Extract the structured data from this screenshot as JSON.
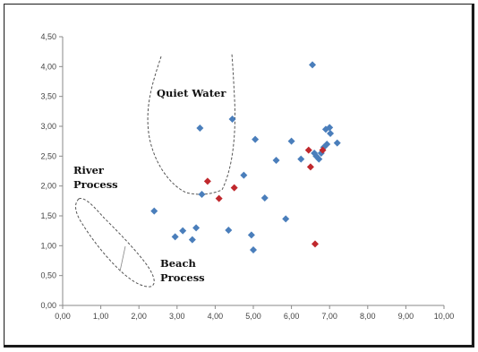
{
  "chart_data": {
    "type": "scatter",
    "title": "",
    "xlabel": "",
    "ylabel": "",
    "xlim": [
      0,
      10
    ],
    "ylim": [
      0,
      4.5
    ],
    "x_ticks": [
      "0,00",
      "1,00",
      "2,00",
      "3,00",
      "4,00",
      "5,00",
      "6,00",
      "7,00",
      "8,00",
      "9,00",
      "10,00"
    ],
    "y_ticks": [
      "0,00",
      "0,50",
      "1,00",
      "1,50",
      "2,00",
      "2,50",
      "3,00",
      "3,50",
      "4,00",
      "4,50"
    ],
    "grid": false,
    "legend": "none",
    "series": [
      {
        "color": "#4a7ebb",
        "marker": "diamond",
        "points": [
          [
            2.4,
            1.58
          ],
          [
            2.95,
            1.15
          ],
          [
            3.15,
            1.25
          ],
          [
            3.4,
            1.1
          ],
          [
            3.5,
            1.3
          ],
          [
            3.6,
            2.97
          ],
          [
            3.65,
            1.86
          ],
          [
            4.35,
            1.26
          ],
          [
            4.45,
            3.12
          ],
          [
            4.75,
            2.18
          ],
          [
            4.95,
            1.18
          ],
          [
            5.0,
            0.93
          ],
          [
            5.05,
            2.78
          ],
          [
            5.3,
            1.8
          ],
          [
            5.6,
            2.43
          ],
          [
            5.85,
            1.45
          ],
          [
            6.0,
            2.75
          ],
          [
            6.25,
            2.45
          ],
          [
            6.55,
            4.03
          ],
          [
            6.6,
            2.55
          ],
          [
            6.65,
            2.5
          ],
          [
            6.72,
            2.45
          ],
          [
            6.78,
            2.55
          ],
          [
            6.85,
            2.65
          ],
          [
            6.9,
            2.95
          ],
          [
            6.93,
            2.7
          ],
          [
            7.0,
            2.98
          ],
          [
            7.02,
            2.88
          ],
          [
            7.2,
            2.72
          ]
        ]
      },
      {
        "color": "#c0282d",
        "marker": "diamond",
        "points": [
          [
            3.8,
            2.08
          ],
          [
            4.1,
            1.79
          ],
          [
            4.5,
            1.97
          ],
          [
            6.45,
            2.6
          ],
          [
            6.5,
            2.32
          ],
          [
            6.62,
            1.03
          ],
          [
            6.82,
            2.6
          ]
        ]
      }
    ],
    "annotations": [
      "Quiet Water",
      "River Process",
      "Beach Process"
    ]
  }
}
